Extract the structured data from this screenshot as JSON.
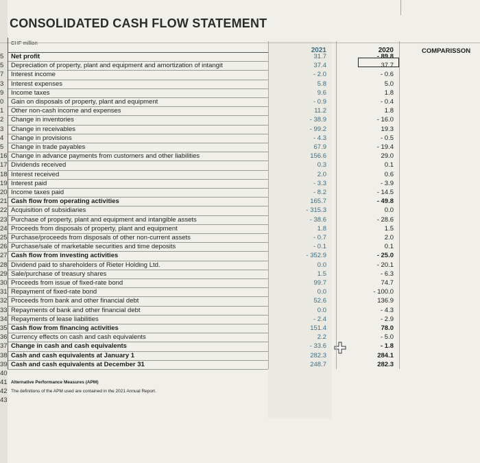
{
  "title": "CONSOLIDATED CASH FLOW STATEMENT",
  "unit": "CHF million",
  "headers": {
    "y2021": "2021",
    "y2020": "2020",
    "comparison": "COMPARISSON"
  },
  "rows": [
    {
      "n": "5",
      "label": "Net profit",
      "v2021": "31.7",
      "v2020": "- 89.8",
      "bold": true
    },
    {
      "n": "5",
      "label": "Depreciation of property, plant and equipment and amortization of intangit",
      "v2021": "37.4",
      "v2020": "37.7",
      "bold": false
    },
    {
      "n": "7",
      "label": "Interest income",
      "v2021": "- 2.0",
      "v2020": "- 0.6",
      "bold": false
    },
    {
      "n": "3",
      "label": "Interest expenses",
      "v2021": "5.8",
      "v2020": "5.0",
      "bold": false
    },
    {
      "n": "9",
      "label": "Income taxes",
      "v2021": "9.6",
      "v2020": "1.8",
      "bold": false
    },
    {
      "n": "0",
      "label": "Gain on disposals of property, plant and equipment",
      "v2021": "- 0.9",
      "v2020": "- 0.4",
      "bold": false
    },
    {
      "n": "1",
      "label": "Other non-cash income and expenses",
      "v2021": "11.2",
      "v2020": "1.8",
      "bold": false
    },
    {
      "n": "2",
      "label": "Change in inventories",
      "v2021": "- 38.9",
      "v2020": "- 16.0",
      "bold": false
    },
    {
      "n": "3",
      "label": "Change in receivables",
      "v2021": "- 99.2",
      "v2020": "19.3",
      "bold": false
    },
    {
      "n": "4",
      "label": "Change in provisions",
      "v2021": "- 4.3",
      "v2020": "- 0.5",
      "bold": false
    },
    {
      "n": "5",
      "label": "Change in trade payables",
      "v2021": "67.9",
      "v2020": "- 19.4",
      "bold": false
    },
    {
      "n": "16",
      "label": "Change in advance payments from customers and other liabilities",
      "v2021": "156.6",
      "v2020": "29.0",
      "bold": false
    },
    {
      "n": "17",
      "label": "Dividends received",
      "v2021": "0.3",
      "v2020": "0.1",
      "bold": false
    },
    {
      "n": "18",
      "label": "Interest received",
      "v2021": "2.0",
      "v2020": "0.6",
      "bold": false
    },
    {
      "n": "19",
      "label": "Interest paid",
      "v2021": "- 3.3",
      "v2020": "- 3.9",
      "bold": false
    },
    {
      "n": "20",
      "label": "Income taxes paid",
      "v2021": "- 8.2",
      "v2020": "- 14.5",
      "bold": false
    },
    {
      "n": "21",
      "label": "Cash flow from operating activities",
      "v2021": "165.7",
      "v2020": "- 49.8",
      "bold": true
    },
    {
      "n": "22",
      "label": "Acquisition of subsidiaries",
      "v2021": "- 315.3",
      "v2020": "0.0",
      "bold": false
    },
    {
      "n": "23",
      "label": "Purchase of property, plant and equipment and intangible assets",
      "v2021": "- 38.6",
      "v2020": "- 28.6",
      "bold": false
    },
    {
      "n": "24",
      "label": "Proceeds from disposals of property, plant and equipment",
      "v2021": "1.8",
      "v2020": "1.5",
      "bold": false
    },
    {
      "n": "25",
      "label": "Purchase/proceeds from disposals of other non-current assets",
      "v2021": "- 0.7",
      "v2020": "2.0",
      "bold": false
    },
    {
      "n": "26",
      "label": "Purchase/sale of marketable securities and time deposits",
      "v2021": "- 0.1",
      "v2020": "0.1",
      "bold": false
    },
    {
      "n": "27",
      "label": "Cash flow from investing activities",
      "v2021": "- 352.9",
      "v2020": "- 25.0",
      "bold": true
    },
    {
      "n": "28",
      "label": "Dividend paid to shareholders of Rieter Holding Ltd.",
      "v2021": "0.0",
      "v2020": "- 20.1",
      "bold": false
    },
    {
      "n": "29",
      "label": "Sale/purchase of treasury shares",
      "v2021": "1.5",
      "v2020": "- 6.3",
      "bold": false
    },
    {
      "n": "30",
      "label": "Proceeds from issue of fixed-rate bond",
      "v2021": "99.7",
      "v2020": "74.7",
      "bold": false
    },
    {
      "n": "31",
      "label": "Repayment of fixed-rate bond",
      "v2021": "0.0",
      "v2020": "- 100.0",
      "bold": false
    },
    {
      "n": "32",
      "label": "Proceeds from bank and other financial debt",
      "v2021": "52.6",
      "v2020": "136.9",
      "bold": false
    },
    {
      "n": "33",
      "label": "Repayments of bank and other financial debt",
      "v2021": "0.0",
      "v2020": "- 4.3",
      "bold": false
    },
    {
      "n": "34",
      "label": "Repayments of lease liabilities",
      "v2021": "- 2.4",
      "v2020": "- 2.9",
      "bold": false
    },
    {
      "n": "35",
      "label": "Cash flow from financing activities",
      "v2021": "151.4",
      "v2020": "78.0",
      "bold": true
    },
    {
      "n": "36",
      "label": "Currency effects on cash and cash equivalents",
      "v2021": "2.2",
      "v2020": "- 5.0",
      "bold": false
    },
    {
      "n": "37",
      "label": "Change in cash and cash equivalents",
      "v2021": "- 33.6",
      "v2020": "- 1.8",
      "bold": true
    },
    {
      "n": "38",
      "label": "Cash and cash equivalents at January 1",
      "v2021": "282.3",
      "v2020": "284.1",
      "bold": true
    },
    {
      "n": "39",
      "label": "Cash and cash equivalents at December 31",
      "v2021": "248.7",
      "v2020": "282.3",
      "bold": true
    }
  ],
  "footer": [
    {
      "n": "40",
      "label": ""
    },
    {
      "n": "41",
      "label": "Alternative Performance Measures (APM)",
      "bold": true
    },
    {
      "n": "42",
      "label": "The definitions of the APM used are contained in the 2021 Annual Report.",
      "bold": false
    },
    {
      "n": "43",
      "label": ""
    }
  ]
}
